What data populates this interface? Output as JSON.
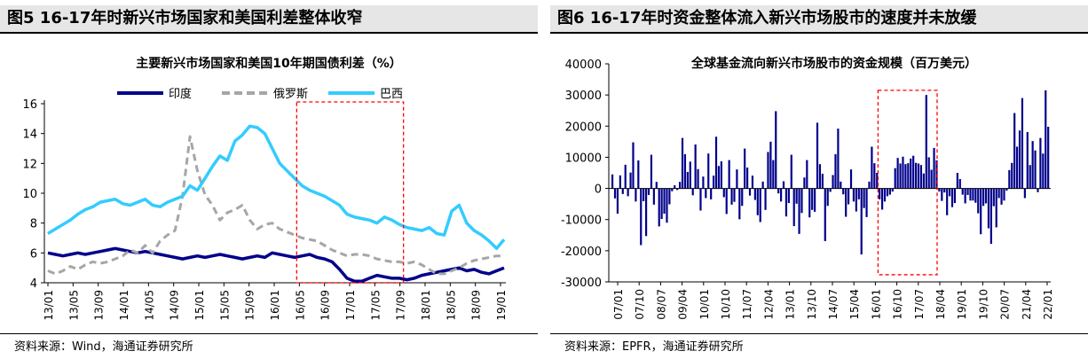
{
  "left": {
    "fig_title": "图5  16-17年时新兴市场国家和美国利差整体收窄",
    "source": "资料来源：Wind，海通证券研究所",
    "chart_data": {
      "type": "line",
      "title": "主要新兴市场国家和美国10年期国债利差（%）",
      "xlabel": "",
      "ylabel": "",
      "ylim": [
        4,
        16
      ],
      "yticks": [
        "4",
        "6",
        "8",
        "10",
        "12",
        "14",
        "16"
      ],
      "x_tick_labels": [
        "13/01",
        "13/05",
        "13/09",
        "14/01",
        "14/05",
        "14/09",
        "15/01",
        "15/05",
        "15/09",
        "16/01",
        "16/05",
        "16/09",
        "17/01",
        "17/05",
        "17/09",
        "18/01",
        "18/05",
        "18/09",
        "19/01"
      ],
      "legend_position": "top",
      "grid": false,
      "annotation": "red dashed box from 16/05 to 17/09",
      "highlight_x_range": [
        "16/05",
        "17/09"
      ],
      "series": [
        {
          "name": "印度",
          "color": "#00008b",
          "dash": "solid",
          "values": [
            6.0,
            5.9,
            5.8,
            5.9,
            6.0,
            5.9,
            6.0,
            6.1,
            6.2,
            6.3,
            6.2,
            6.1,
            6.0,
            6.1,
            6.0,
            5.9,
            5.8,
            5.7,
            5.6,
            5.7,
            5.8,
            5.7,
            5.8,
            5.9,
            5.8,
            5.7,
            5.6,
            5.7,
            5.8,
            5.7,
            6.0,
            5.9,
            5.8,
            5.7,
            5.8,
            5.9,
            5.7,
            5.6,
            5.4,
            4.9,
            4.3,
            4.1,
            4.1,
            4.3,
            4.5,
            4.4,
            4.3,
            4.3,
            4.2,
            4.3,
            4.5,
            4.6,
            4.7,
            4.8,
            4.9,
            5.0,
            4.8,
            4.9,
            4.7,
            4.6,
            4.8,
            5.0
          ]
        },
        {
          "name": "俄罗斯",
          "color": "#a6a6a6",
          "dash": "dashed",
          "values": [
            4.8,
            4.6,
            4.8,
            5.1,
            4.9,
            5.2,
            5.4,
            5.3,
            5.4,
            5.6,
            5.8,
            6.2,
            6.0,
            6.5,
            6.0,
            6.8,
            7.2,
            7.5,
            9.8,
            13.8,
            11.5,
            9.9,
            9.2,
            8.2,
            8.7,
            8.9,
            9.2,
            8.2,
            7.6,
            7.9,
            8.0,
            7.6,
            7.4,
            7.2,
            7.0,
            6.9,
            6.8,
            6.5,
            6.2,
            6.0,
            5.8,
            5.9,
            5.9,
            5.8,
            5.6,
            5.5,
            5.4,
            5.4,
            5.3,
            5.4,
            5.2,
            4.9,
            4.6,
            4.6,
            4.8,
            5.0,
            5.3,
            5.5,
            5.6,
            5.7,
            5.8,
            5.8
          ]
        },
        {
          "name": "巴西",
          "color": "#33ccff",
          "dash": "solid",
          "values": [
            7.3,
            7.6,
            7.9,
            8.2,
            8.6,
            8.9,
            9.1,
            9.4,
            9.5,
            9.6,
            9.3,
            9.2,
            9.4,
            9.6,
            9.2,
            9.1,
            9.4,
            9.6,
            9.8,
            10.5,
            10.2,
            11.0,
            11.8,
            12.5,
            12.2,
            13.5,
            13.9,
            14.5,
            14.4,
            14.0,
            13.0,
            12.0,
            11.5,
            11.0,
            10.5,
            10.2,
            10.0,
            9.8,
            9.5,
            9.2,
            8.6,
            8.4,
            8.3,
            8.2,
            8.0,
            8.4,
            8.2,
            7.9,
            7.7,
            7.6,
            7.5,
            7.7,
            7.3,
            7.2,
            8.8,
            9.2,
            8.0,
            7.5,
            7.2,
            6.8,
            6.3,
            6.9
          ]
        }
      ]
    }
  },
  "right": {
    "fig_title": "图6  16-17年时资金整体流入新兴市场股市的速度并未放缓",
    "source": "资料来源：EPFR，海通证券研究所",
    "chart_data": {
      "type": "bar",
      "title": "全球基金流向新兴市场股市的资金规模（百万美元）",
      "xlabel": "",
      "ylabel": "",
      "ylim": [
        -30000,
        40000
      ],
      "yticks": [
        "-30000",
        "-20000",
        "-10000",
        "0",
        "10000",
        "20000",
        "30000",
        "40000"
      ],
      "x_tick_labels": [
        "07/01",
        "07/10",
        "08/07",
        "09/04",
        "10/01",
        "10/10",
        "11/07",
        "12/04",
        "13/01",
        "13/10",
        "14/07",
        "15/04",
        "16/01",
        "16/10",
        "17/07",
        "18/04",
        "19/01",
        "19/10",
        "20/07",
        "21/04",
        "22/01"
      ],
      "bar_color": "#00008b",
      "grid": false,
      "annotation": "red dashed box from 16/01 to 18/04",
      "highlight_x_range": [
        "16/01",
        "18/04"
      ],
      "values": [
        4500,
        -3200,
        -8100,
        4200,
        -1800,
        7600,
        -2500,
        5100,
        14800,
        -4200,
        9000,
        -18200,
        -4100,
        -15300,
        -2100,
        10800,
        -5200,
        2100,
        -12200,
        -9800,
        -8100,
        -11000,
        -5100,
        -900,
        1000,
        -500,
        2100,
        16200,
        11000,
        5300,
        8600,
        -2200,
        14100,
        6200,
        -7100,
        3800,
        -3100,
        11200,
        -3500,
        4100,
        16600,
        7200,
        8700,
        -2800,
        -8200,
        9100,
        -5200,
        -4300,
        6100,
        -9900,
        -5600,
        12800,
        6700,
        -2300,
        4100,
        -3700,
        -8600,
        -10800,
        2200,
        -6900,
        11700,
        15000,
        9100,
        24800,
        -1600,
        -4200,
        2300,
        -9000,
        -4700,
        10800,
        -12100,
        -4900,
        -14600,
        -7900,
        3500,
        9100,
        -9300,
        -6900,
        -7500,
        21100,
        7800,
        4700,
        -16900,
        -5600,
        -1100,
        4300,
        11000,
        19200,
        2200,
        -1900,
        -9100,
        -5100,
        6100,
        -4200,
        -7400,
        -3500,
        -21200,
        -6300,
        -9200,
        2200,
        13400,
        8100,
        5000,
        -3500,
        -6800,
        -4200,
        -2500,
        -2000,
        -1000,
        6500,
        9800,
        8000,
        10200,
        7800,
        8100,
        9600,
        10500,
        8200,
        8000,
        7500,
        4800,
        30000,
        10000,
        6000,
        13000,
        9000,
        -1000,
        -4000,
        -1300,
        -8600,
        -2500,
        -6000,
        -4700,
        5000,
        3000,
        -2000,
        -4800,
        -2100,
        -3900,
        -3900,
        -4600,
        -8000,
        -14700,
        -5600,
        -4800,
        -12800,
        -17800,
        -5700,
        -12500,
        -3100,
        -5200,
        -3900,
        -700,
        5900,
        8200,
        24200,
        13400,
        18600,
        29000,
        -3100,
        18100,
        7500,
        15200,
        12200,
        -1200,
        16200,
        11200,
        31500,
        19800
      ]
    }
  }
}
